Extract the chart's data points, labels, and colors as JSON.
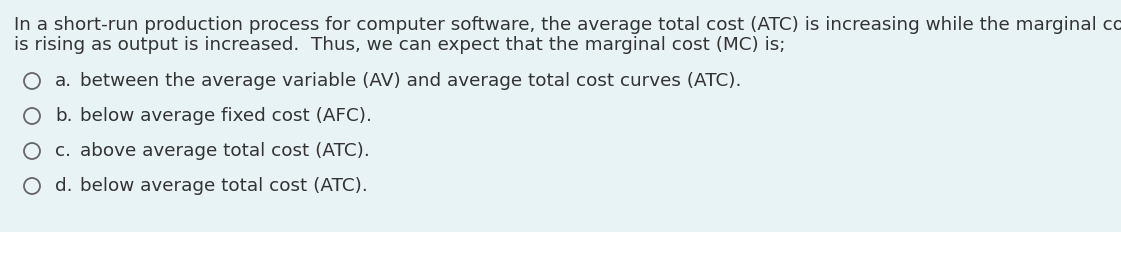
{
  "background_color": "#e8f3f6",
  "bottom_color": "#ffffff",
  "text_color": "#333333",
  "paragraph_line1": "In a short-run production process for computer software, the average total cost (ATC) is increasing while the marginal cost (MC)",
  "paragraph_line2": "is rising as output is increased.  Thus, we can expect that the marginal cost (MC) is;",
  "options": [
    {
      "label": "a.",
      "text": "between the average variable (AV) and average total cost curves (ATC)."
    },
    {
      "label": "b.",
      "text": "below average fixed cost (AFC)."
    },
    {
      "label": "c.",
      "text": "above average total cost (ATC)."
    },
    {
      "label": "d.",
      "text": "below average total cost (ATC)."
    }
  ],
  "para_fontsize": 13.2,
  "option_fontsize": 13.2,
  "font_family": "DejaVu Sans"
}
